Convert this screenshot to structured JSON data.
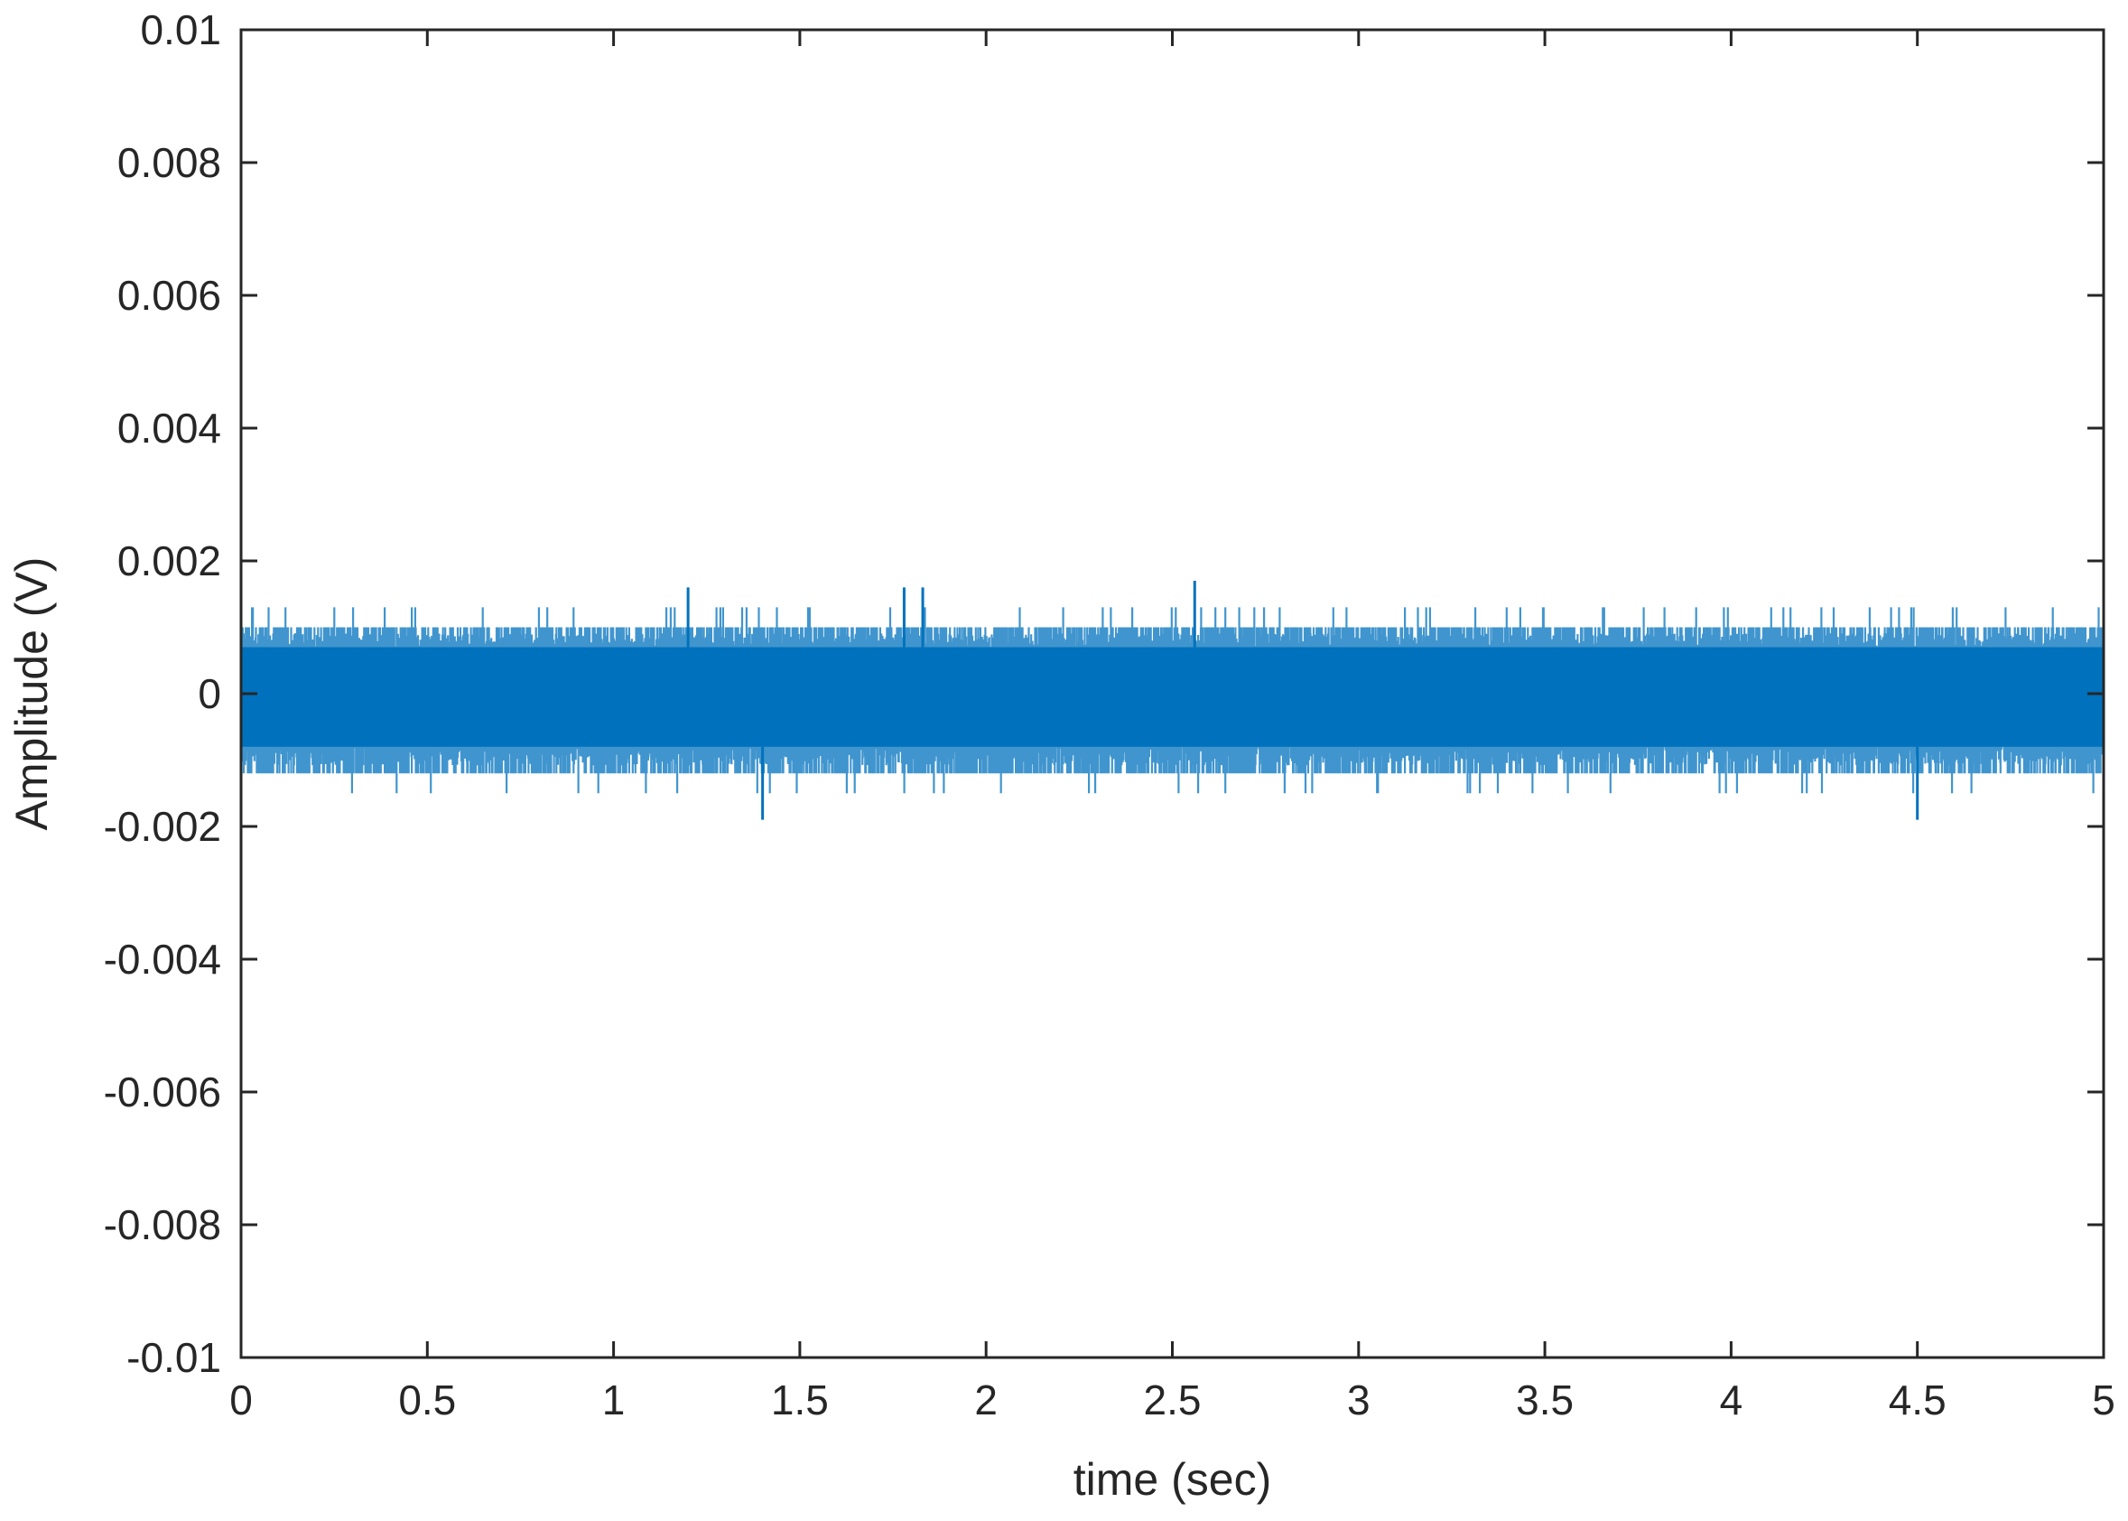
{
  "chart_data": {
    "type": "line",
    "title": "",
    "xlabel": "time (sec)",
    "ylabel": "Amplitude (V)",
    "xlim": [
      0,
      5
    ],
    "ylim": [
      -0.01,
      0.01
    ],
    "x_ticks": [
      0,
      0.5,
      1,
      1.5,
      2,
      2.5,
      3,
      3.5,
      4,
      4.5,
      5
    ],
    "x_tick_labels": [
      "0",
      "0.5",
      "1",
      "1.5",
      "2",
      "2.5",
      "3",
      "3.5",
      "4",
      "4.5",
      "5"
    ],
    "y_ticks": [
      -0.01,
      -0.008,
      -0.006,
      -0.004,
      -0.002,
      0,
      0.002,
      0.004,
      0.006,
      0.008,
      0.01
    ],
    "y_tick_labels": [
      "-0.01",
      "-0.008",
      "-0.006",
      "-0.004",
      "-0.002",
      "0",
      "0.002",
      "0.004",
      "0.006",
      "0.008",
      "0.01"
    ],
    "grid": false,
    "legend": "none",
    "series": [
      {
        "color": "#0072bd",
        "description": "dense noise signal sampled across 0–5 s",
        "core_band": [
          -0.0008,
          0.0007
        ],
        "typical_range": [
          -0.0012,
          0.001
        ],
        "peak_max": 0.0017,
        "peak_min": -0.0019,
        "notable_peaks": [
          {
            "x": 1.2,
            "y": 0.0016
          },
          {
            "x": 1.78,
            "y": 0.0016
          },
          {
            "x": 1.83,
            "y": 0.0016
          },
          {
            "x": 2.56,
            "y": 0.0017
          },
          {
            "x": 1.4,
            "y": -0.0019
          },
          {
            "x": 4.5,
            "y": -0.0019
          }
        ]
      }
    ]
  }
}
